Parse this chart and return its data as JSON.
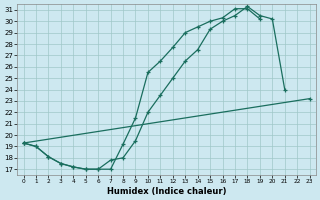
{
  "xlabel": "Humidex (Indice chaleur)",
  "bg_color": "#cde8f0",
  "grid_color": "#a0c8c8",
  "line_color": "#1a6e5e",
  "xlim": [
    -0.5,
    23.5
  ],
  "ylim": [
    16.5,
    31.5
  ],
  "xticks": [
    0,
    1,
    2,
    3,
    4,
    5,
    6,
    7,
    8,
    9,
    10,
    11,
    12,
    13,
    14,
    15,
    16,
    17,
    18,
    19,
    20,
    21,
    22,
    23
  ],
  "yticks": [
    17,
    18,
    19,
    20,
    21,
    22,
    23,
    24,
    25,
    26,
    27,
    28,
    29,
    30,
    31
  ],
  "line1_x": [
    0,
    1,
    2,
    3,
    4,
    5,
    6,
    7,
    8,
    9,
    10,
    11,
    12,
    13,
    14,
    15,
    16,
    17,
    18,
    19
  ],
  "line1_y": [
    19.3,
    19.0,
    18.1,
    17.5,
    17.2,
    17.0,
    17.0,
    17.0,
    19.2,
    21.5,
    25.5,
    26.5,
    27.7,
    29.0,
    29.5,
    30.0,
    30.3,
    31.1,
    31.1,
    30.2
  ],
  "line2_x": [
    0,
    1,
    2,
    3,
    4,
    5,
    6,
    7,
    8,
    9,
    10,
    11,
    12,
    13,
    14,
    15,
    16,
    17,
    18,
    19,
    20,
    21
  ],
  "line2_y": [
    19.3,
    19.0,
    18.1,
    17.5,
    17.2,
    17.0,
    17.0,
    17.8,
    18.0,
    19.5,
    22.0,
    23.5,
    25.0,
    26.5,
    27.5,
    29.3,
    30.0,
    30.5,
    31.3,
    30.5,
    30.2,
    24.0
  ],
  "line3_x": [
    0,
    23
  ],
  "line3_y": [
    19.3,
    23.2
  ]
}
